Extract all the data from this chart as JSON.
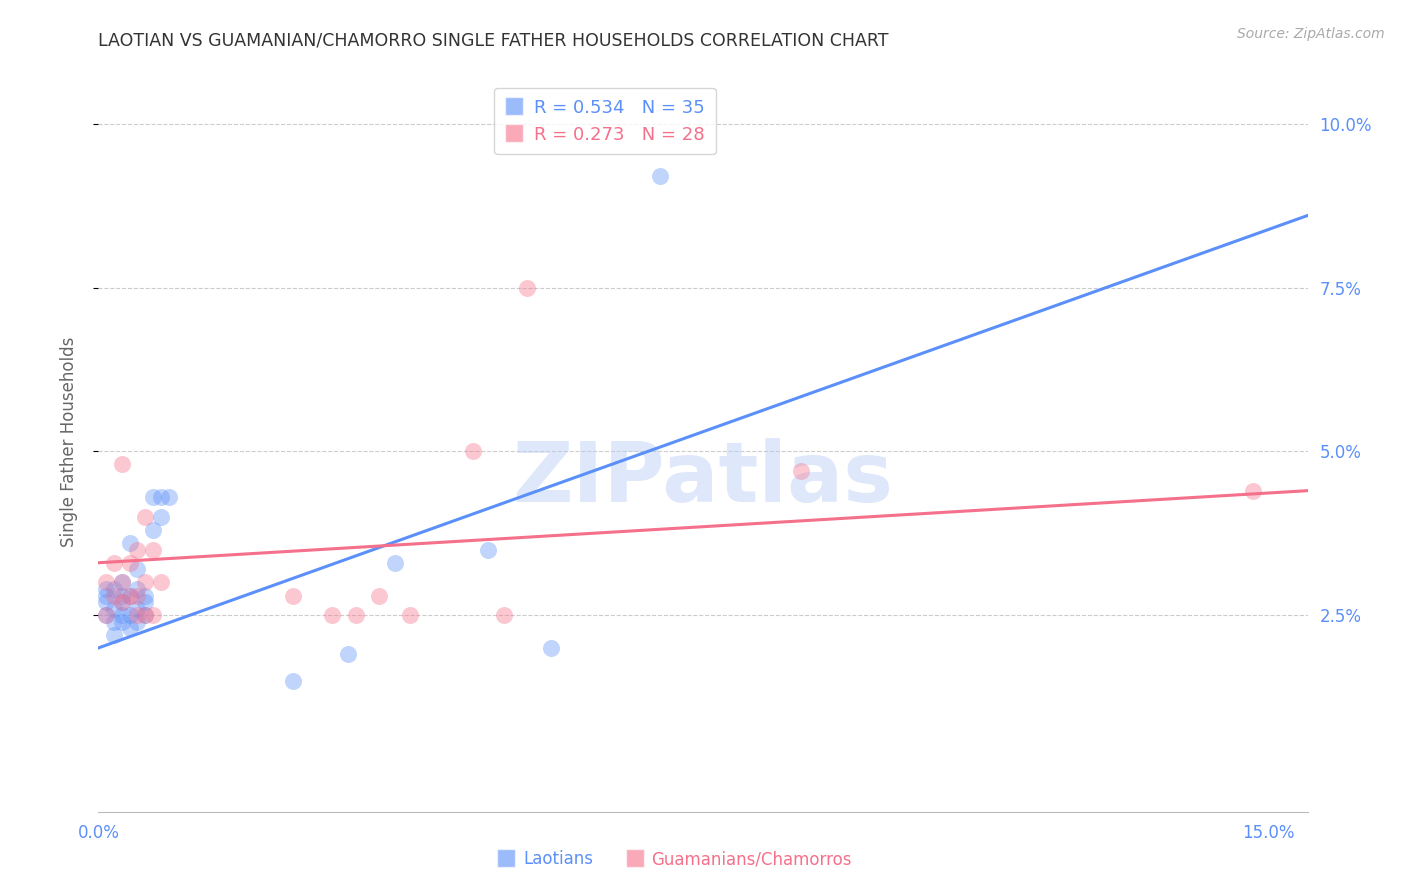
{
  "title": "LAOTIAN VS GUAMANIAN/CHAMORRO SINGLE FATHER HOUSEHOLDS CORRELATION CHART",
  "source": "Source: ZipAtlas.com",
  "ylabel": "Single Father Households",
  "watermark": "ZIPatlas",
  "xlim": [
    0.0,
    0.155
  ],
  "ylim": [
    -0.005,
    0.108
  ],
  "background_color": "#ffffff",
  "grid_color": "#cccccc",
  "laotian_color": "#5b8ff9",
  "guamanian_color": "#f5708a",
  "laotian_R": 0.534,
  "laotian_N": 35,
  "guamanian_R": 0.273,
  "guamanian_N": 28,
  "laotian_points_x": [
    0.001,
    0.001,
    0.001,
    0.001,
    0.002,
    0.002,
    0.002,
    0.002,
    0.003,
    0.003,
    0.003,
    0.003,
    0.003,
    0.004,
    0.004,
    0.004,
    0.004,
    0.005,
    0.005,
    0.005,
    0.005,
    0.006,
    0.006,
    0.006,
    0.007,
    0.007,
    0.008,
    0.008,
    0.009,
    0.025,
    0.032,
    0.038,
    0.05,
    0.058,
    0.072
  ],
  "laotian_points_y": [
    0.025,
    0.027,
    0.028,
    0.029,
    0.022,
    0.024,
    0.026,
    0.029,
    0.024,
    0.025,
    0.027,
    0.028,
    0.03,
    0.023,
    0.025,
    0.028,
    0.036,
    0.024,
    0.026,
    0.029,
    0.032,
    0.025,
    0.027,
    0.028,
    0.038,
    0.043,
    0.04,
    0.043,
    0.043,
    0.015,
    0.019,
    0.033,
    0.035,
    0.02,
    0.092
  ],
  "guamanian_points_x": [
    0.001,
    0.001,
    0.002,
    0.002,
    0.003,
    0.003,
    0.003,
    0.004,
    0.004,
    0.005,
    0.005,
    0.005,
    0.006,
    0.006,
    0.006,
    0.007,
    0.007,
    0.008,
    0.025,
    0.03,
    0.033,
    0.036,
    0.04,
    0.048,
    0.052,
    0.055,
    0.09,
    0.148
  ],
  "guamanian_points_y": [
    0.025,
    0.03,
    0.028,
    0.033,
    0.027,
    0.03,
    0.048,
    0.028,
    0.033,
    0.025,
    0.028,
    0.035,
    0.025,
    0.03,
    0.04,
    0.025,
    0.035,
    0.03,
    0.028,
    0.025,
    0.025,
    0.028,
    0.025,
    0.05,
    0.025,
    0.075,
    0.047,
    0.044
  ],
  "laotian_line_x": [
    0.0,
    0.155
  ],
  "laotian_line_y": [
    0.02,
    0.086
  ],
  "guamanian_line_x": [
    0.0,
    0.155
  ],
  "guamanian_line_y": [
    0.033,
    0.044
  ],
  "tick_color": "#5b8ff9",
  "title_color": "#333333",
  "axis_label_color": "#666666",
  "ytick_positions": [
    0.025,
    0.05,
    0.075,
    0.1
  ],
  "ytick_labels": [
    "2.5%",
    "5.0%",
    "7.5%",
    "10.0%"
  ]
}
